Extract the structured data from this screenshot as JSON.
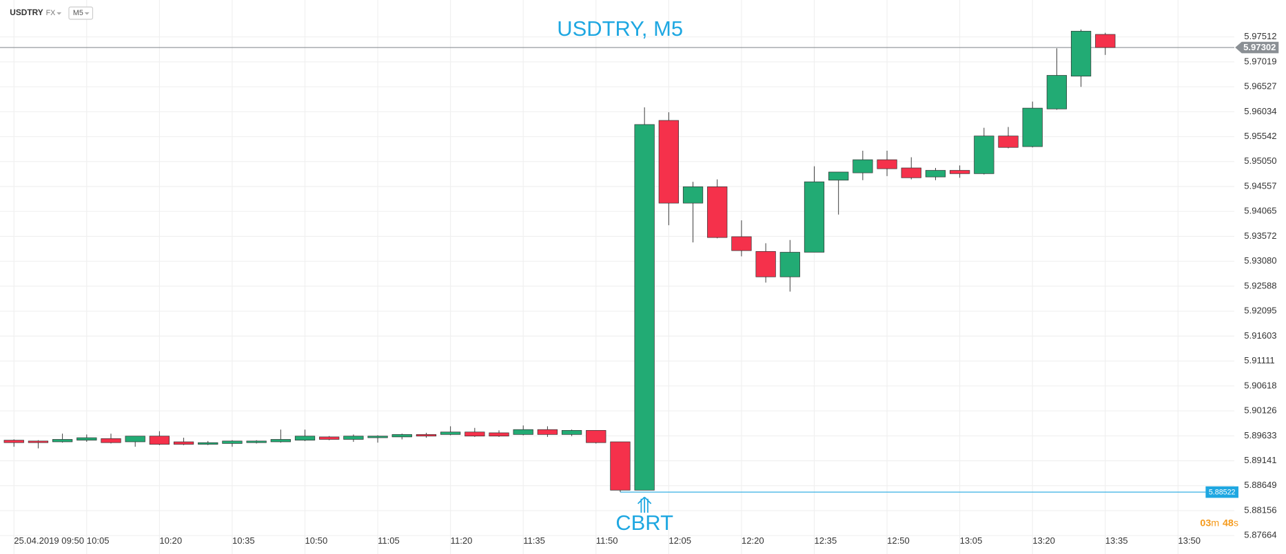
{
  "toolbar": {
    "symbol": "USDTRY",
    "market": "FX",
    "timeframe": "M5"
  },
  "countdown": {
    "minutes": "03",
    "minutes_unit": "m",
    "seconds": "48",
    "seconds_unit": "s"
  },
  "chart_data": {
    "type": "candlestick",
    "title": "USDTRY, M5",
    "annotation": "CBRT",
    "up_color": "#22ab74",
    "down_color": "#f5314b",
    "grid": true,
    "categories": [
      "25.04.2019 09:50",
      null,
      null,
      "10:05",
      null,
      null,
      "10:20",
      null,
      null,
      "10:35",
      null,
      null,
      "10:50",
      null,
      null,
      "11:05",
      null,
      null,
      "11:20",
      null,
      null,
      "11:35",
      null,
      null,
      "11:50",
      null,
      null,
      "12:05",
      null,
      null,
      "12:20",
      null,
      null,
      "12:35",
      null,
      null,
      "12:50",
      null,
      null,
      "13:05",
      null,
      null,
      "13:20",
      null,
      null,
      "13:35",
      null,
      null,
      "13:50"
    ],
    "open": [
      5.89547,
      5.89531,
      5.89515,
      5.89547,
      5.89579,
      5.89515,
      5.89628,
      5.89515,
      5.89466,
      5.89482,
      5.89499,
      5.89515,
      5.89547,
      5.89612,
      5.89563,
      5.89596,
      5.89612,
      5.8966,
      5.8966,
      5.89709,
      5.89693,
      5.8966,
      5.89757,
      5.8966,
      5.89741,
      5.89515,
      5.8856,
      5.95862,
      5.94229,
      5.94552,
      5.93566,
      5.93275,
      5.92773,
      5.93259,
      5.94682,
      5.94827,
      5.95086,
      5.94924,
      5.94746,
      5.94876,
      5.94811,
      5.95555,
      5.95345,
      5.96089,
      5.96736,
      5.97561,
      null,
      null,
      null
    ],
    "high": [
      5.89563,
      5.89547,
      5.89677,
      5.8966,
      5.89677,
      5.89628,
      5.89725,
      5.89596,
      5.89531,
      5.89547,
      5.89547,
      5.89757,
      5.89757,
      5.89628,
      5.8966,
      5.89644,
      5.89677,
      5.89693,
      5.89822,
      5.8979,
      5.89741,
      5.89838,
      5.89822,
      5.89757,
      5.89741,
      5.89515,
      5.96121,
      5.96024,
      5.9465,
      5.94698,
      5.93889,
      5.93437,
      5.93501,
      5.94957,
      5.94843,
      5.95264,
      5.95264,
      5.95135,
      5.94924,
      5.94973,
      5.95717,
      5.95733,
      5.96234,
      5.97286,
      5.97658,
      5.97593,
      null,
      null,
      null
    ],
    "low": [
      5.89418,
      5.89386,
      5.89499,
      5.89515,
      5.89482,
      5.89418,
      5.8945,
      5.8945,
      5.8945,
      5.89418,
      5.89482,
      5.89499,
      5.89531,
      5.89547,
      5.89515,
      5.89499,
      5.89563,
      5.89596,
      5.89644,
      5.89612,
      5.89612,
      5.89644,
      5.89612,
      5.89628,
      5.89482,
      5.88522,
      5.8856,
      5.93792,
      5.93453,
      5.93534,
      5.93178,
      5.9266,
      5.92482,
      5.93259,
      5.94003,
      5.94682,
      5.94763,
      5.94698,
      5.94682,
      5.9473,
      5.94795,
      5.95312,
      5.95329,
      5.96073,
      5.96525,
      5.97156,
      null,
      null,
      null
    ],
    "close": [
      5.89499,
      5.89499,
      5.89563,
      5.89596,
      5.89499,
      5.89628,
      5.89466,
      5.89466,
      5.89499,
      5.89531,
      5.89531,
      5.89563,
      5.89628,
      5.89563,
      5.89628,
      5.89628,
      5.8966,
      5.89628,
      5.89709,
      5.89628,
      5.89628,
      5.89757,
      5.8966,
      5.89741,
      5.89499,
      5.8856,
      5.95781,
      5.94229,
      5.94552,
      5.9355,
      5.93291,
      5.92773,
      5.93259,
      5.9465,
      5.94843,
      5.95086,
      5.94908,
      5.9473,
      5.94876,
      5.94811,
      5.95555,
      5.95329,
      5.96105,
      5.96752,
      5.97625,
      5.97302,
      null,
      null,
      null
    ],
    "last_price": 5.97302,
    "last_price_color": "#8a8f94",
    "level": 5.88522,
    "level_color": "#1ea7e1",
    "ylim": [
      5.873,
      5.9824
    ],
    "yticks": [
      5.97512,
      5.97019,
      5.96527,
      5.96034,
      5.95542,
      {
        "value": 5.9505,
        "label": "5.95050"
      },
      5.94557,
      5.94065,
      5.93572,
      {
        "value": 5.9308,
        "label": "5.93080"
      },
      5.92588,
      5.92095,
      5.91603,
      5.91111,
      5.90618,
      5.90126,
      5.89633,
      5.89141,
      5.88649,
      5.88156,
      5.87664
    ]
  }
}
